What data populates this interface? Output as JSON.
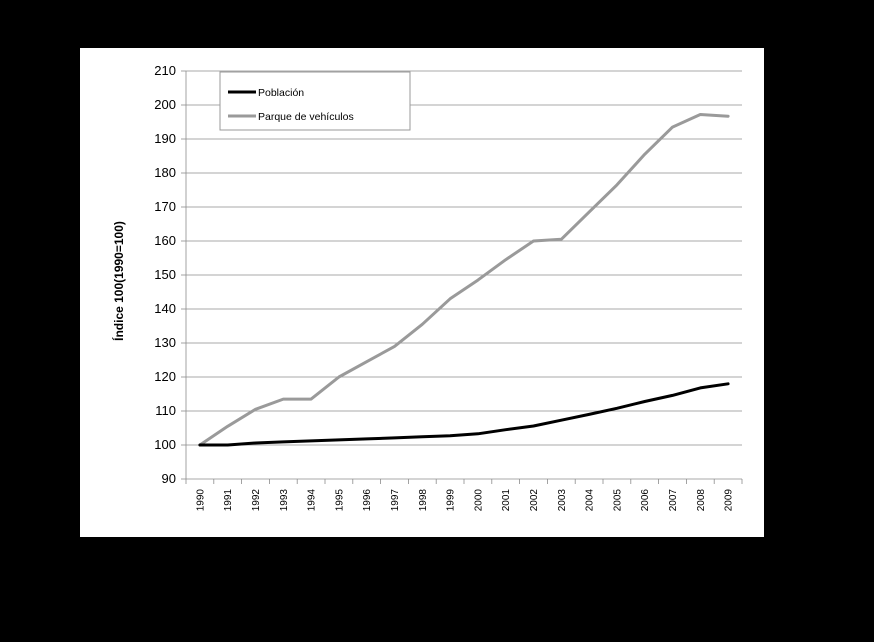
{
  "chart_data": {
    "type": "line",
    "title": "",
    "xlabel": "",
    "ylabel": "Índice 100(1990=100)",
    "ylim": [
      90,
      210
    ],
    "yticks": [
      90,
      100,
      110,
      120,
      130,
      140,
      150,
      160,
      170,
      180,
      190,
      200,
      210
    ],
    "grid": true,
    "legend_position": "top-left",
    "categories": [
      "1990",
      "1991",
      "1992",
      "1993",
      "1994",
      "1995",
      "1996",
      "1997",
      "1998",
      "1999",
      "2000",
      "2001",
      "2002",
      "2003",
      "2004",
      "2005",
      "2006",
      "2007",
      "2008",
      "2009"
    ],
    "series": [
      {
        "name": "Población",
        "color": "#000000",
        "values": [
          100,
          100,
          100.6,
          100.9,
          101.2,
          101.5,
          101.8,
          102.1,
          102.4,
          102.7,
          103.3,
          104.5,
          105.6,
          107.3,
          109,
          110.8,
          112.8,
          114.6,
          116.8,
          118
        ]
      },
      {
        "name": "Parque de vehículos",
        "color": "#9a9a9a",
        "values": [
          100,
          105.5,
          110.5,
          113.5,
          113.5,
          120,
          124.5,
          129,
          135.5,
          143,
          148.5,
          154.5,
          160,
          160.5,
          168.5,
          176.5,
          185.5,
          193.5,
          197.2,
          196.7
        ]
      }
    ]
  }
}
